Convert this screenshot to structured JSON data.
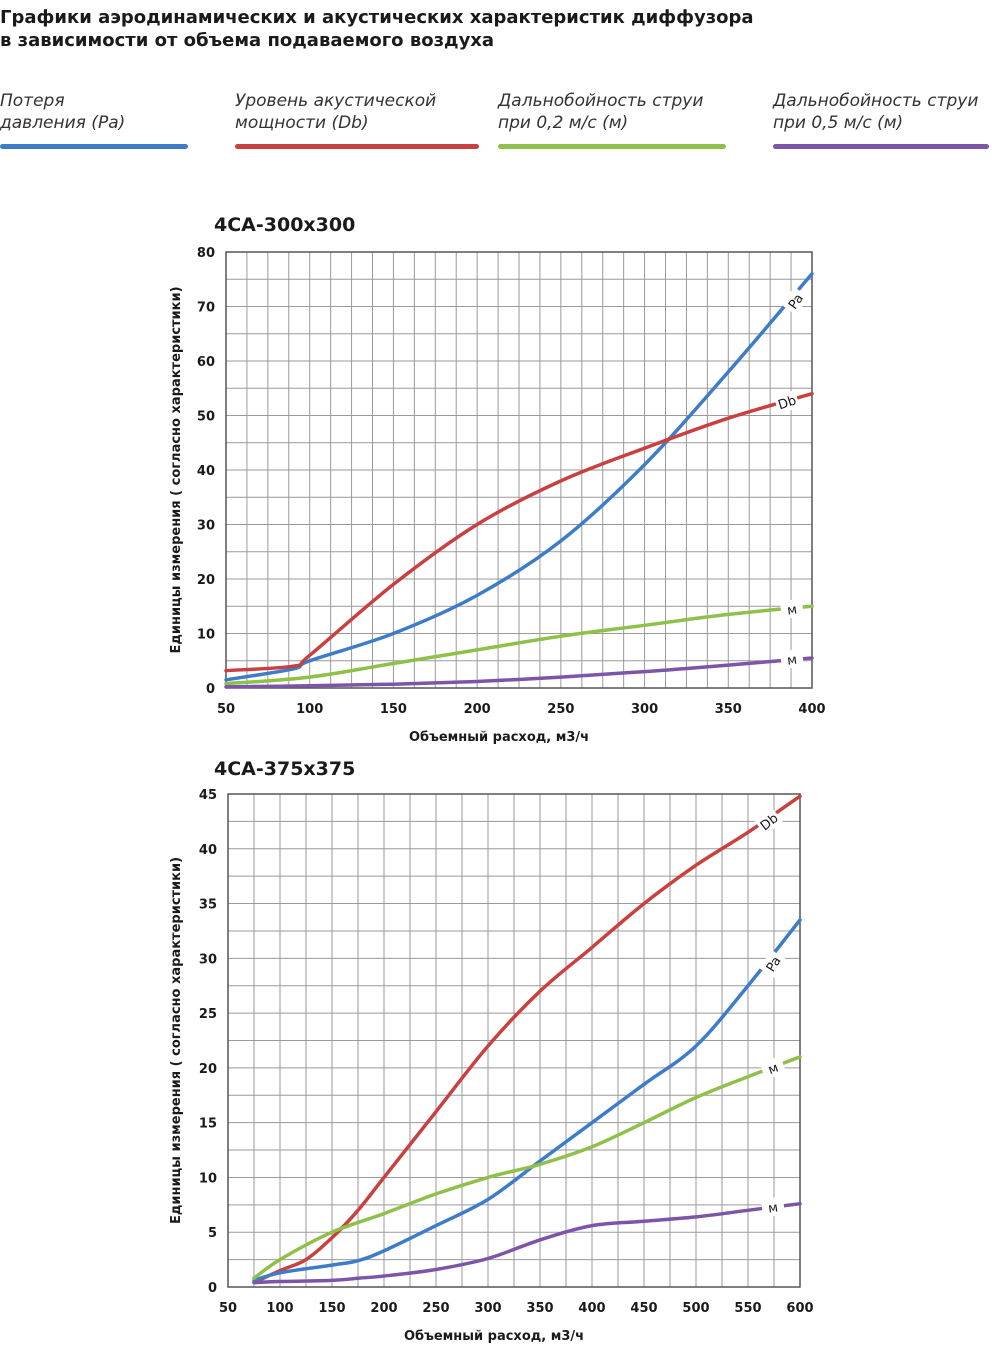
{
  "page": {
    "title_line1": "Графики аэродинамических и акустических характеристик  диффузора",
    "title_line2": "в зависимости от объема подаваемого воздуха"
  },
  "legend": [
    {
      "line1": "Потеря",
      "line2": "давления (Pa)",
      "color": "#3d7cc9"
    },
    {
      "line1": "Уровень акустической",
      "line2": "мощности (Db)",
      "color": "#c8403f"
    },
    {
      "line1": "Дальнобойность струи",
      "line2": "при 0,2 м/с (м)",
      "color": "#8fc04a"
    },
    {
      "line1": "Дальнобойность струи",
      "line2": "при 0,5 м/с (м)",
      "color": "#7d55a8"
    }
  ],
  "chart_data": [
    {
      "type": "line",
      "title": "4CA-300x300",
      "xlabel": "Объемный расход, м3/ч",
      "ylabel": "Единицы измерения ( согласно характеристики)",
      "xlim": [
        50,
        400
      ],
      "ylim": [
        0,
        80
      ],
      "xticks": [
        "50",
        "100",
        "150",
        "200",
        "250",
        "300",
        "350",
        "400"
      ],
      "yticks": [
        "0",
        "10",
        "20",
        "30",
        "40",
        "50",
        "60",
        "70",
        "80"
      ],
      "grid": true,
      "series": [
        {
          "name": "Pa",
          "color": "#3d7cc9",
          "x": [
            50,
            90,
            100,
            150,
            200,
            250,
            300,
            350,
            400
          ],
          "y": [
            1.5,
            3.5,
            5,
            10,
            17,
            27,
            41,
            58,
            76
          ]
        },
        {
          "name": "Db",
          "color": "#c8403f",
          "x": [
            50,
            90,
            100,
            150,
            200,
            250,
            300,
            350,
            400
          ],
          "y": [
            3.2,
            4,
            6,
            19,
            30,
            38,
            44,
            49.5,
            54
          ]
        },
        {
          "name": "м",
          "color": "#8fc04a",
          "x": [
            50,
            100,
            150,
            200,
            250,
            300,
            350,
            400
          ],
          "y": [
            0.8,
            2,
            4.5,
            7,
            9.5,
            11.5,
            13.5,
            15
          ]
        },
        {
          "name": "м",
          "color": "#7d55a8",
          "x": [
            50,
            100,
            150,
            200,
            250,
            300,
            350,
            400
          ],
          "y": [
            0.2,
            0.4,
            0.7,
            1.2,
            2,
            3,
            4.2,
            5.5
          ]
        }
      ]
    },
    {
      "type": "line",
      "title": "4CA-375x375",
      "xlabel": "Объемный расход, м3/ч",
      "ylabel": "Единицы измерения ( согласно характеристики)",
      "xlim": [
        50,
        600
      ],
      "ylim": [
        0,
        45
      ],
      "xticks": [
        "50",
        "100",
        "150",
        "200",
        "250",
        "300",
        "350",
        "400",
        "450",
        "500",
        "550",
        "600"
      ],
      "yticks": [
        "0",
        "5",
        "10",
        "15",
        "20",
        "25",
        "30",
        "35",
        "40",
        "45"
      ],
      "grid": true,
      "series": [
        {
          "name": "Db",
          "color": "#c8403f",
          "x": [
            75,
            100,
            125,
            150,
            175,
            200,
            250,
            300,
            350,
            400,
            450,
            500,
            550,
            600
          ],
          "y": [
            0.4,
            1.5,
            2.5,
            4.5,
            7,
            10,
            16,
            22,
            27,
            31,
            35,
            38.5,
            41.5,
            44.8
          ]
        },
        {
          "name": "Pa",
          "color": "#3d7cc9",
          "x": [
            75,
            100,
            150,
            175,
            200,
            250,
            300,
            350,
            400,
            450,
            500,
            550,
            600
          ],
          "y": [
            0.6,
            1.3,
            2,
            2.4,
            3.3,
            5.6,
            8,
            11.5,
            15,
            18.5,
            22,
            27.5,
            33.5
          ]
        },
        {
          "name": "м",
          "color": "#8fc04a",
          "x": [
            75,
            100,
            150,
            200,
            250,
            300,
            350,
            400,
            450,
            500,
            550,
            600
          ],
          "y": [
            0.8,
            2.5,
            5,
            6.7,
            8.5,
            10,
            11.2,
            12.8,
            15,
            17.3,
            19.2,
            21
          ]
        },
        {
          "name": "м",
          "color": "#7d55a8",
          "x": [
            75,
            100,
            150,
            175,
            200,
            250,
            300,
            350,
            400,
            450,
            500,
            550,
            600
          ],
          "y": [
            0.4,
            0.5,
            0.6,
            0.8,
            1,
            1.6,
            2.6,
            4.3,
            5.6,
            6,
            6.4,
            7,
            7.6
          ]
        }
      ]
    }
  ]
}
